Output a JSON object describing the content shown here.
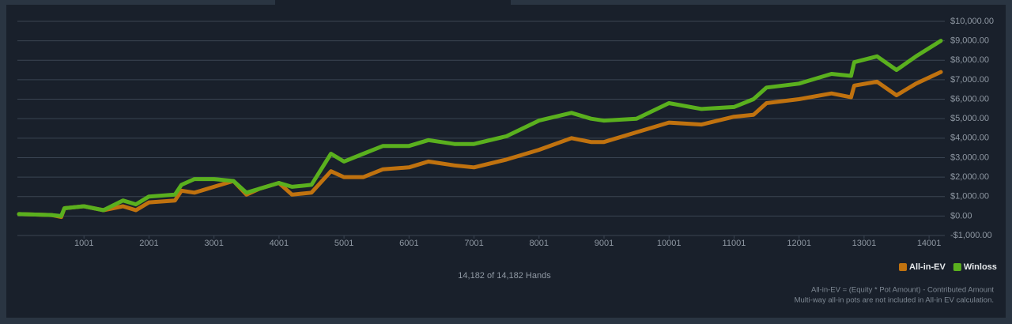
{
  "chart_data": {
    "type": "line",
    "x": [
      1,
      500,
      650,
      700,
      1000,
      1300,
      1600,
      1800,
      2000,
      2400,
      2500,
      2700,
      3000,
      3300,
      3500,
      3700,
      4000,
      4200,
      4500,
      4800,
      5000,
      5300,
      5600,
      6000,
      6300,
      6700,
      7000,
      7500,
      8000,
      8500,
      8800,
      9000,
      9500,
      10000,
      10500,
      11000,
      11300,
      11500,
      12000,
      12500,
      12800,
      12850,
      13200,
      13500,
      13800,
      14182
    ],
    "series": [
      {
        "name": "All-in-EV",
        "color": "#c0720f",
        "values": [
          100,
          50,
          -50,
          400,
          500,
          300,
          500,
          300,
          700,
          800,
          1300,
          1200,
          1500,
          1800,
          1100,
          1400,
          1700,
          1100,
          1200,
          2300,
          2000,
          2000,
          2400,
          2500,
          2800,
          2600,
          2500,
          2900,
          3400,
          4000,
          3800,
          3800,
          4300,
          4800,
          4700,
          5100,
          5200,
          5800,
          6000,
          6300,
          6100,
          6700,
          6900,
          6200,
          6800,
          7400
        ]
      },
      {
        "name": "Winloss",
        "color": "#5ab01e",
        "values": [
          100,
          50,
          0,
          400,
          500,
          300,
          800,
          600,
          1000,
          1100,
          1600,
          1900,
          1900,
          1800,
          1200,
          1400,
          1700,
          1500,
          1600,
          3200,
          2800,
          3200,
          3600,
          3600,
          3900,
          3700,
          3700,
          4100,
          4900,
          5300,
          5000,
          4900,
          5000,
          5800,
          5500,
          5600,
          6000,
          6600,
          6800,
          7300,
          7200,
          7900,
          8200,
          7500,
          8200,
          9000
        ]
      }
    ],
    "xlim": [
      1,
      14182
    ],
    "xticks": [
      1001,
      2001,
      3001,
      4001,
      5001,
      6001,
      7001,
      8001,
      9001,
      10001,
      11001,
      12001,
      13001,
      14001
    ],
    "ylim": [
      -1000,
      10000
    ],
    "yticks": [
      {
        "value": -1000,
        "label": "-$1,000.00"
      },
      {
        "value": 0,
        "label": "$0.00"
      },
      {
        "value": 1000,
        "label": "$1,000.00"
      },
      {
        "value": 2000,
        "label": "$2,000.00"
      },
      {
        "value": 3000,
        "label": "$3,000.00"
      },
      {
        "value": 4000,
        "label": "$4,000.00"
      },
      {
        "value": 5000,
        "label": "$5,000.00"
      },
      {
        "value": 6000,
        "label": "$6,000.00"
      },
      {
        "value": 7000,
        "label": "$7,000.00"
      },
      {
        "value": 8000,
        "label": "$8,000.00"
      },
      {
        "value": 9000,
        "label": "$9,000.00"
      },
      {
        "value": 10000,
        "label": "$10,000.00"
      }
    ],
    "grid": true,
    "legend": "bottom-right",
    "hands_label": "14,182 of 14,182 Hands",
    "notes": [
      "All-in-EV = (Equity * Pot Amount) - Contributed Amount",
      "Multi-way all-in pots are not included in All-in EV calculation."
    ]
  }
}
